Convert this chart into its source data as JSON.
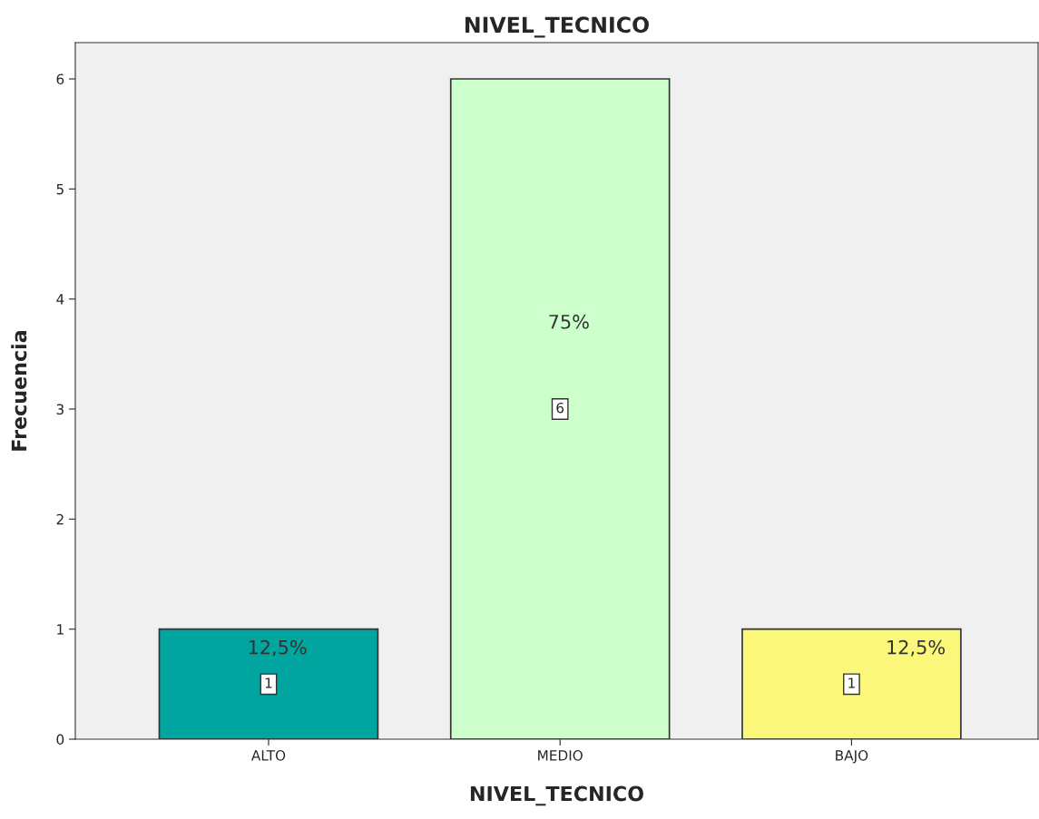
{
  "chart_data": {
    "type": "bar",
    "title": "NIVEL_TECNICO",
    "xlabel": "NIVEL_TECNICO",
    "ylabel": "Frecuencia",
    "categories": [
      "ALTO",
      "MEDIO",
      "BAJO"
    ],
    "values": [
      1,
      6,
      1
    ],
    "colors": [
      "#00a5a0",
      "#ccffcc",
      "#fbf77a"
    ],
    "ylim": [
      0,
      6.33
    ],
    "yticks": [
      0,
      1,
      2,
      3,
      4,
      5,
      6
    ],
    "grid": false,
    "data_labels": true,
    "annotations": [
      "12,5%",
      "75%",
      "12,5%"
    ]
  }
}
